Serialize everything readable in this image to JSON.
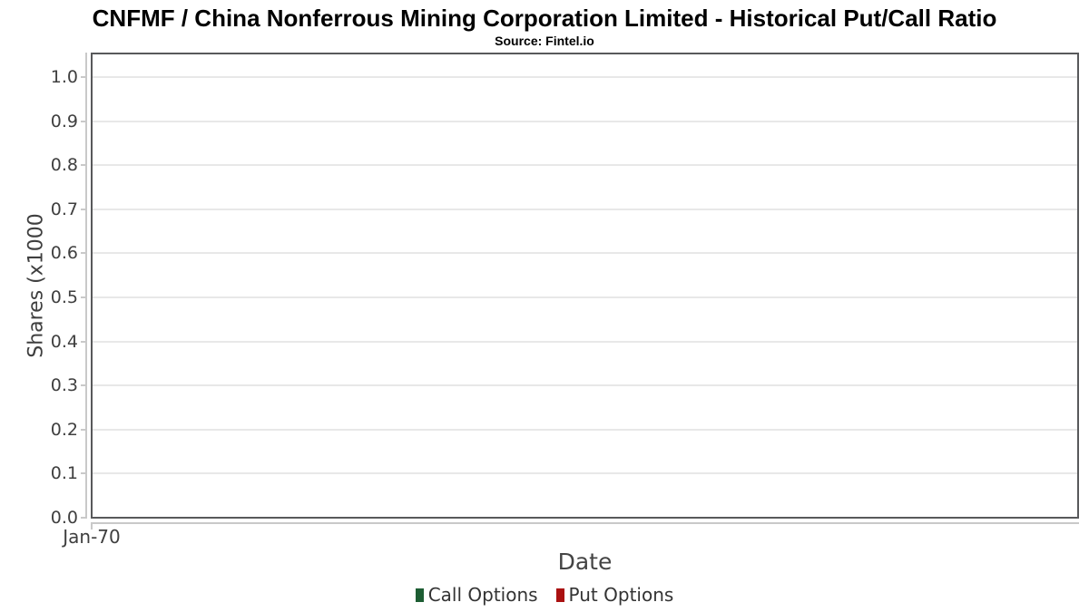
{
  "header": {
    "title": "CNFMF / China Nonferrous Mining Corporation Limited - Historical Put/Call Ratio",
    "subtitle": "Source: Fintel.io"
  },
  "axes": {
    "y_label": "Shares (x1000",
    "x_label": "Date",
    "y_tick_labels": [
      "1.0",
      "0.9",
      "0.8",
      "0.7",
      "0.6",
      "0.5",
      "0.4",
      "0.3",
      "0.2",
      "0.1",
      "0.0"
    ],
    "x_tick_labels": [
      "Jan-70"
    ]
  },
  "legend": {
    "items": [
      {
        "label": "Call Options",
        "color": "#1d5d33"
      },
      {
        "label": "Put Options",
        "color": "#aa1111"
      }
    ]
  },
  "colors": {
    "call_options": "#1d5d33",
    "put_options": "#aa1111",
    "plot_border": "#58595b",
    "axis_line": "#c9c9c9",
    "gridline": "#e8e8e8",
    "axis_text": "#3f3f3f",
    "title_text": "#000000"
  },
  "chart_data": {
    "type": "line",
    "title": "CNFMF / China Nonferrous Mining Corporation Limited - Historical Put/Call Ratio",
    "subtitle": "Source: Fintel.io",
    "xlabel": "Date",
    "ylabel": "Shares (x1000",
    "x_ticks": [
      "Jan-70"
    ],
    "y_ticks": [
      1.0,
      0.9,
      0.8,
      0.7,
      0.6,
      0.5,
      0.4,
      0.3,
      0.2,
      0.1,
      0.0
    ],
    "ylim": [
      0.0,
      1.0
    ],
    "grid": "horizontal",
    "legend_position": "bottom",
    "series": [
      {
        "name": "Call Options",
        "color": "#1d5d33",
        "values": []
      },
      {
        "name": "Put Options",
        "color": "#aa1111",
        "values": []
      }
    ],
    "empty_plot": true
  }
}
